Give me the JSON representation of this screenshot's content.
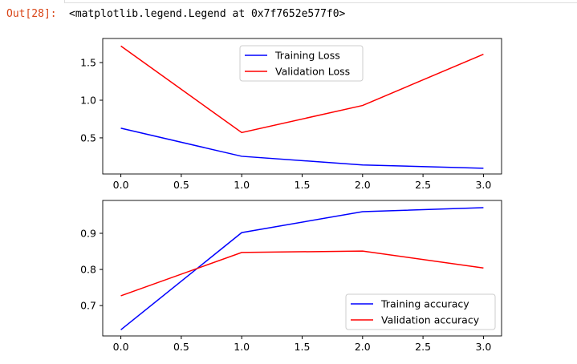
{
  "output": {
    "prompt": "Out[28]:",
    "text": "<matplotlib.legend.Legend at 0x7f7652e577f0>"
  },
  "chart_data": [
    {
      "type": "line",
      "x": [
        0,
        1,
        2,
        3
      ],
      "xlim": [
        -0.15,
        3.15
      ],
      "ylim": [
        0.02,
        1.82
      ],
      "xticks": [
        "0.0",
        "0.5",
        "1.0",
        "1.5",
        "2.0",
        "2.5",
        "3.0"
      ],
      "xtick_values": [
        0,
        0.5,
        1,
        1.5,
        2,
        2.5,
        3
      ],
      "yticks": [
        "0.5",
        "1.0",
        "1.5"
      ],
      "ytick_values": [
        0.5,
        1.0,
        1.5
      ],
      "legend_placement": "upper-center",
      "series": [
        {
          "name": "Training Loss",
          "color": "#0000ff",
          "values": [
            0.628,
            0.255,
            0.14,
            0.096
          ]
        },
        {
          "name": "Validation Loss",
          "color": "#ff0000",
          "values": [
            1.72,
            0.57,
            0.93,
            1.61
          ]
        }
      ]
    },
    {
      "type": "line",
      "x": [
        0,
        1,
        2,
        3
      ],
      "xlim": [
        -0.15,
        3.15
      ],
      "ylim": [
        0.616,
        0.991
      ],
      "xticks": [
        "0.0",
        "0.5",
        "1.0",
        "1.5",
        "2.0",
        "2.5",
        "3.0"
      ],
      "xtick_values": [
        0,
        0.5,
        1,
        1.5,
        2,
        2.5,
        3
      ],
      "yticks": [
        "0.7",
        "0.8",
        "0.9"
      ],
      "ytick_values": [
        0.7,
        0.8,
        0.9
      ],
      "legend_placement": "lower-right",
      "series": [
        {
          "name": "Training accuracy",
          "color": "#0000ff",
          "values": [
            0.633,
            0.902,
            0.96,
            0.971
          ]
        },
        {
          "name": "Validation accuracy",
          "color": "#ff0000",
          "values": [
            0.727,
            0.847,
            0.851,
            0.804
          ]
        }
      ]
    }
  ]
}
